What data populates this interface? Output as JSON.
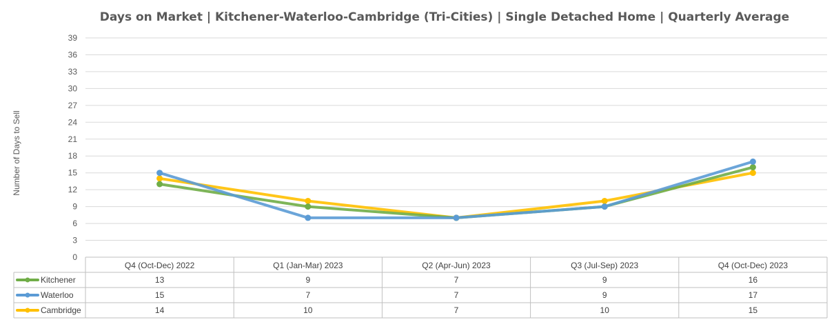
{
  "chart_data": {
    "type": "line",
    "title": "Days on Market | Kitchener-Waterloo-Cambridge (Tri-Cities) | Single Detached Home |  Quarterly Average",
    "ylabel": "Number of Days to Sell",
    "xlabel": "",
    "ylim": [
      0,
      39
    ],
    "yticks": [
      0,
      3,
      6,
      9,
      12,
      15,
      18,
      21,
      24,
      27,
      30,
      33,
      36,
      39
    ],
    "grid": true,
    "legend": "data-table-left",
    "categories": [
      "Q4 (Oct-Dec) 2022",
      "Q1 (Jan-Mar) 2023",
      "Q2 (Apr-Jun) 2023",
      "Q3 (Jul-Sep) 2023",
      "Q4 (Oct-Dec) 2023"
    ],
    "series": [
      {
        "name": "Kitchener",
        "color": "#70AD47",
        "values": [
          13,
          9,
          7,
          9,
          16
        ]
      },
      {
        "name": "Waterloo",
        "color": "#5B9BD5",
        "values": [
          15,
          7,
          7,
          9,
          17
        ]
      },
      {
        "name": "Cambridge",
        "color": "#FFC000",
        "values": [
          14,
          10,
          7,
          10,
          15
        ]
      }
    ]
  }
}
